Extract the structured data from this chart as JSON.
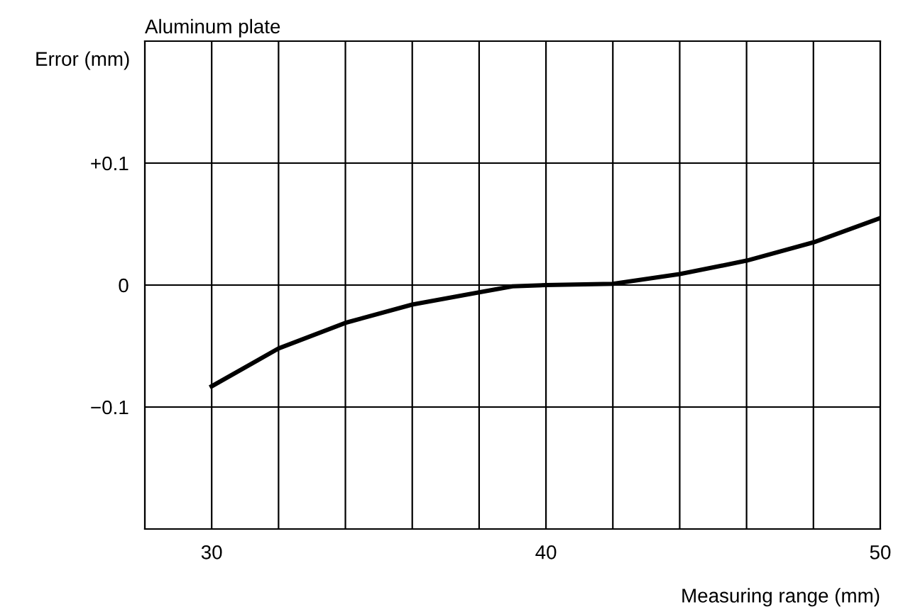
{
  "chart_data": {
    "type": "line",
    "title": "Aluminum plate",
    "xlabel": "Measuring range (mm)",
    "ylabel": "Error (mm)",
    "x": [
      30,
      32,
      34,
      36,
      38,
      39,
      40,
      42,
      44,
      46,
      48,
      50
    ],
    "series": [
      {
        "color": "#000000",
        "values": [
          -0.083,
          -0.052,
          -0.031,
          -0.016,
          -0.006,
          -0.001,
          0,
          0.001,
          0.009,
          0.02,
          0.035,
          0.055
        ]
      }
    ],
    "xlim": [
      28,
      50
    ],
    "xticks": [
      {
        "value": 28,
        "label": null
      },
      30,
      {
        "value": 32,
        "label": null
      },
      {
        "value": 34,
        "label": null
      },
      {
        "value": 36,
        "label": null
      },
      {
        "value": 38,
        "label": null
      },
      40,
      {
        "value": 42,
        "label": null
      },
      {
        "value": 44,
        "label": null
      },
      {
        "value": 46,
        "label": null
      },
      {
        "value": 48,
        "label": null
      },
      50
    ],
    "ylim": [
      -0.2,
      0.2
    ],
    "yticks": [
      {
        "value": -0.2,
        "label": null
      },
      {
        "value": -0.1,
        "label": "−0.1"
      },
      0,
      {
        "value": 0.1,
        "label": "+0.1"
      },
      {
        "value": 0.2,
        "label": null
      }
    ],
    "grid": true,
    "legend": false,
    "marker": "none",
    "line_style": "solid"
  }
}
